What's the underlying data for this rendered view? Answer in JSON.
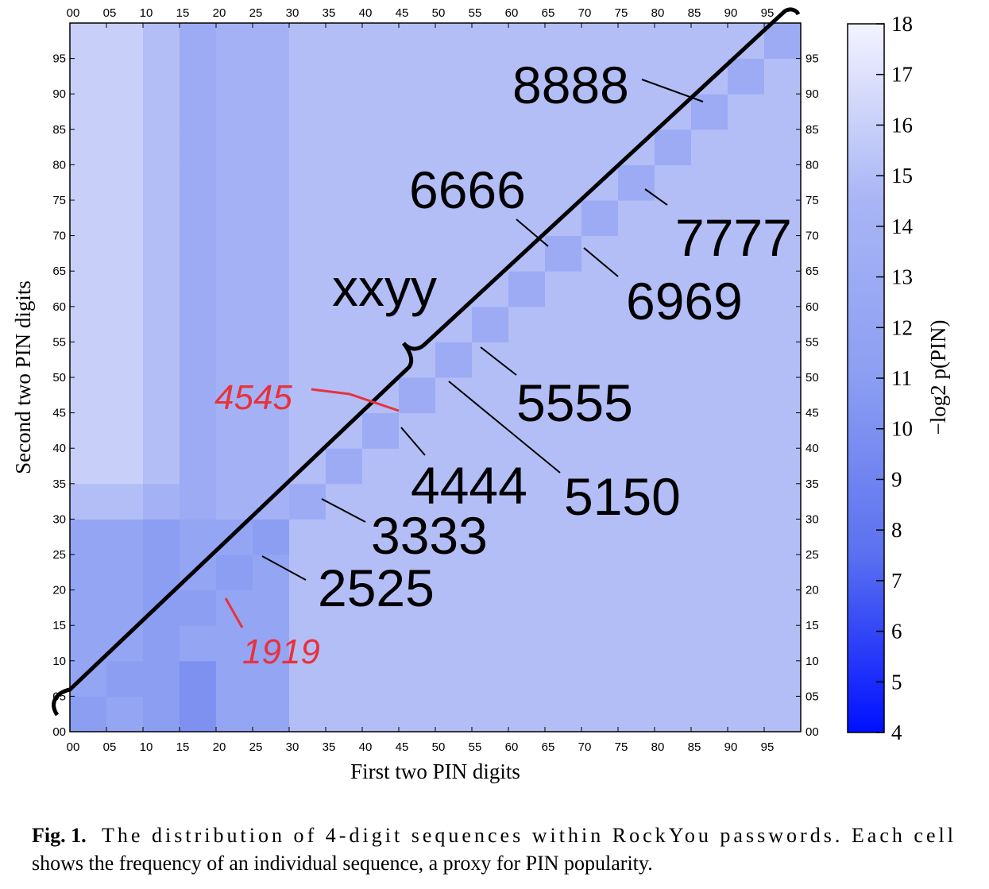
{
  "chart_data": {
    "type": "heatmap",
    "xlabel": "First two PIN digits",
    "ylabel": "Second two PIN digits",
    "colorbar_label": "−log2 p(PIN)",
    "xbins": [
      0,
      5,
      10,
      15,
      20,
      25,
      30,
      35,
      40,
      45,
      50,
      55,
      60,
      65,
      70,
      75,
      80,
      85,
      90,
      95,
      100
    ],
    "ybins": [
      0,
      5,
      10,
      15,
      20,
      25,
      30,
      35,
      40,
      45,
      50,
      55,
      60,
      65,
      70,
      75,
      80,
      85,
      90,
      95,
      100
    ],
    "z": [
      [
        11,
        12,
        11,
        10,
        12,
        12,
        15,
        15,
        15,
        15,
        15,
        15,
        15,
        15,
        15,
        15,
        15,
        15,
        15,
        15
      ],
      [
        12,
        11,
        11,
        10,
        12,
        12,
        15,
        15,
        15,
        15,
        15,
        15,
        15,
        15,
        15,
        15,
        15,
        15,
        15,
        15
      ],
      [
        12,
        12,
        11,
        12,
        12,
        12,
        15,
        15,
        15,
        15,
        15,
        15,
        15,
        15,
        15,
        15,
        15,
        15,
        15,
        15
      ],
      [
        12,
        12,
        11,
        11,
        12,
        12,
        15,
        15,
        15,
        15,
        15,
        15,
        15,
        15,
        15,
        15,
        15,
        15,
        15,
        15
      ],
      [
        12,
        12,
        11,
        12,
        11,
        12,
        15,
        15,
        15,
        15,
        15,
        15,
        15,
        15,
        15,
        15,
        15,
        15,
        15,
        15
      ],
      [
        12,
        12,
        11,
        12,
        12,
        11,
        15,
        15,
        15,
        15,
        15,
        15,
        15,
        15,
        15,
        15,
        15,
        15,
        15,
        15
      ],
      [
        15,
        15,
        14,
        13,
        14,
        14,
        13,
        15,
        15,
        15,
        15,
        15,
        15,
        15,
        15,
        15,
        15,
        15,
        15,
        15
      ],
      [
        16,
        16,
        15,
        13,
        14,
        14,
        15,
        13,
        15,
        15,
        15,
        15,
        15,
        15,
        15,
        15,
        15,
        15,
        15,
        15
      ],
      [
        16,
        16,
        15,
        13,
        14,
        14,
        15,
        15,
        13,
        15,
        15,
        15,
        15,
        15,
        15,
        15,
        15,
        15,
        15,
        15
      ],
      [
        16,
        16,
        15,
        13,
        14,
        14,
        15,
        15,
        15,
        13,
        15,
        15,
        15,
        15,
        15,
        15,
        15,
        15,
        15,
        15
      ],
      [
        16,
        16,
        15,
        13,
        14,
        14,
        15,
        15,
        15,
        15,
        13,
        15,
        15,
        15,
        15,
        15,
        15,
        15,
        15,
        15
      ],
      [
        16,
        16,
        15,
        13,
        14,
        14,
        15,
        15,
        15,
        15,
        15,
        13,
        15,
        15,
        15,
        15,
        15,
        15,
        15,
        15
      ],
      [
        16,
        16,
        15,
        13,
        14,
        14,
        15,
        15,
        15,
        15,
        15,
        15,
        13,
        15,
        15,
        15,
        15,
        15,
        15,
        15
      ],
      [
        16,
        16,
        15,
        13,
        14,
        14,
        15,
        15,
        15,
        15,
        15,
        15,
        15,
        13,
        15,
        15,
        15,
        15,
        15,
        15
      ],
      [
        16,
        16,
        15,
        13,
        14,
        14,
        15,
        15,
        15,
        15,
        15,
        15,
        15,
        15,
        13,
        15,
        15,
        15,
        15,
        15
      ],
      [
        16,
        16,
        15,
        13,
        14,
        14,
        15,
        15,
        15,
        15,
        15,
        15,
        15,
        15,
        15,
        13,
        15,
        15,
        15,
        15
      ],
      [
        16,
        16,
        15,
        13,
        14,
        14,
        15,
        15,
        15,
        15,
        15,
        15,
        15,
        15,
        15,
        15,
        13,
        15,
        15,
        15
      ],
      [
        16,
        16,
        15,
        13,
        14,
        14,
        15,
        15,
        15,
        15,
        15,
        15,
        15,
        15,
        15,
        15,
        15,
        13,
        15,
        15
      ],
      [
        16,
        16,
        15,
        13,
        14,
        14,
        15,
        15,
        15,
        15,
        15,
        15,
        15,
        15,
        15,
        15,
        15,
        15,
        13,
        15
      ],
      [
        16,
        16,
        15,
        13,
        14,
        14,
        15,
        15,
        15,
        15,
        15,
        15,
        15,
        15,
        15,
        15,
        15,
        15,
        15,
        13
      ]
    ],
    "xlim": [
      0,
      100
    ],
    "ylim": [
      0,
      100
    ],
    "xticks": [
      {
        "value": 0,
        "label": "00"
      },
      {
        "value": 5,
        "label": "05"
      },
      10,
      15,
      20,
      25,
      30,
      35,
      40,
      45,
      50,
      55,
      60,
      65,
      70,
      75,
      80,
      85,
      90,
      95
    ],
    "yticks": [
      {
        "value": 0,
        "label": "00"
      },
      {
        "value": 5,
        "label": "05"
      },
      10,
      15,
      20,
      25,
      30,
      35,
      40,
      45,
      50,
      55,
      60,
      65,
      70,
      75,
      80,
      85,
      90,
      95
    ],
    "zlim": [
      4,
      18
    ],
    "zticks": [
      4,
      5,
      6,
      7,
      8,
      9,
      10,
      11,
      12,
      13,
      14,
      15,
      16,
      17,
      18
    ],
    "colorscale": [
      "#0010ff",
      "#5a70f0",
      "#8c9ef2",
      "#a8b5f5",
      "#f3f3ff"
    ],
    "annotations": [
      "8888",
      "6666",
      "7777",
      "6969",
      "xxyy",
      "5555",
      "5150",
      "4444",
      "3333",
      "2525",
      "4545",
      "1919"
    ]
  },
  "caption": {
    "label": "Fig. 1.",
    "lines": [
      "The distribution of 4-digit sequences within RockYou passwords. Each cell",
      "shows the frequency of an individual sequence, a proxy for PIN popularity."
    ]
  }
}
